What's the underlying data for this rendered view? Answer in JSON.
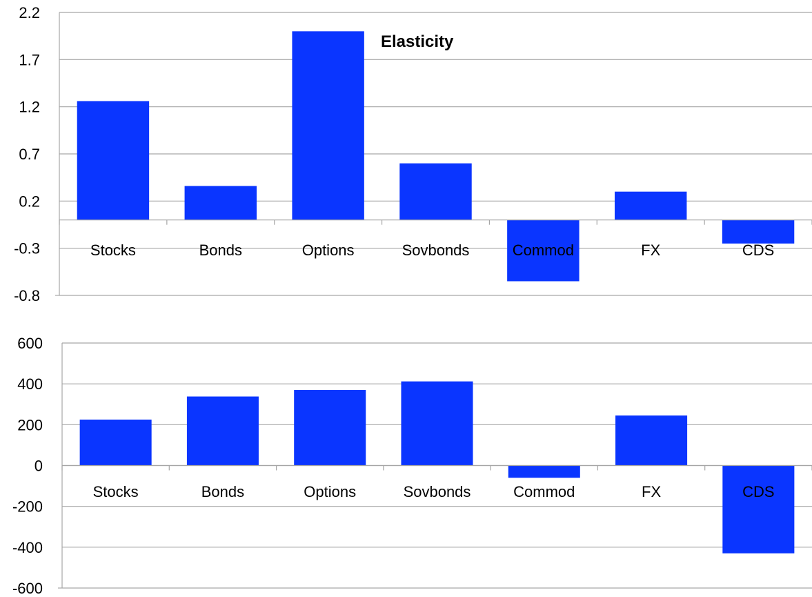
{
  "chart_data": [
    {
      "type": "bar",
      "title": "Elasticity",
      "xlabel": "",
      "ylabel": "",
      "categories": [
        "Stocks",
        "Bonds",
        "Options",
        "Sovbonds",
        "Commod",
        "FX",
        "CDS"
      ],
      "values": [
        1.26,
        0.36,
        2.0,
        0.6,
        -0.65,
        0.3,
        -0.25
      ],
      "ylim": [
        -0.8,
        2.2
      ],
      "yticks": [
        -0.8,
        -0.3,
        0.2,
        0.7,
        1.2,
        1.7,
        2.2
      ],
      "ytick_labels": [
        "-0.8",
        "-0.3",
        "0.2",
        "0.7",
        "1.2",
        "1.7",
        "2.2"
      ],
      "grid": true,
      "bar_color": "#0a35ff"
    },
    {
      "type": "bar",
      "title": "",
      "xlabel": "",
      "ylabel": "",
      "categories": [
        "Stocks",
        "Bonds",
        "Options",
        "Sovbonds",
        "Commod",
        "FX",
        "CDS"
      ],
      "values": [
        225,
        338,
        370,
        412,
        -60,
        245,
        -430
      ],
      "ylim": [
        -600,
        600
      ],
      "yticks": [
        -600,
        -400,
        -200,
        0,
        200,
        400,
        600
      ],
      "ytick_labels": [
        "-600",
        "-400",
        "-200",
        "0",
        "200",
        "400",
        "600"
      ],
      "grid": true,
      "bar_color": "#0a35ff"
    }
  ]
}
